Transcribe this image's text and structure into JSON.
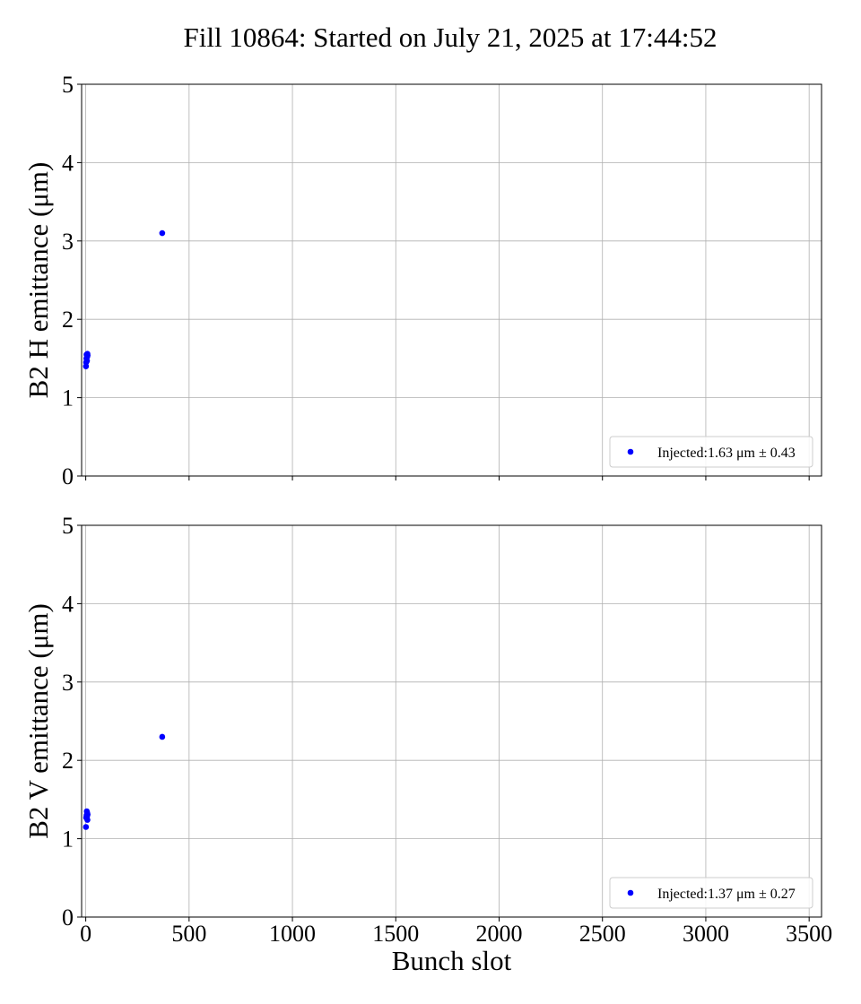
{
  "figure": {
    "title": "Fill 10864: Started on July 21, 2025 at 17:44:52"
  },
  "chart_data": [
    {
      "type": "scatter",
      "ylabel": "B2 H emittance (μm)",
      "xlabel": "",
      "xlim": [
        -20,
        3560
      ],
      "ylim": [
        0,
        5
      ],
      "x_ticks": [
        0,
        500,
        1000,
        1500,
        2000,
        2500,
        3000,
        3500
      ],
      "x_tick_labels_visible": false,
      "y_ticks": [
        0,
        1,
        2,
        3,
        4,
        5
      ],
      "y_tick_labels": [
        "0",
        "1",
        "2",
        "3",
        "4",
        "5"
      ],
      "grid": true,
      "legend_position": "bottom-right",
      "marker_color": "#0000ff",
      "series": [
        {
          "name": "Injected:1.63 μm ± 0.43",
          "points": [
            {
              "x": 1,
              "y": 1.4
            },
            {
              "x": 2,
              "y": 1.45
            },
            {
              "x": 3,
              "y": 1.5
            },
            {
              "x": 4,
              "y": 1.55
            },
            {
              "x": 6,
              "y": 1.47
            },
            {
              "x": 7,
              "y": 1.52
            },
            {
              "x": 8,
              "y": 1.56
            },
            {
              "x": 9,
              "y": 1.54
            },
            {
              "x": 370,
              "y": 3.1
            }
          ]
        }
      ]
    },
    {
      "type": "scatter",
      "ylabel": "B2 V emittance (μm)",
      "xlabel": "Bunch slot",
      "xlim": [
        -20,
        3560
      ],
      "ylim": [
        0,
        5
      ],
      "x_ticks": [
        0,
        500,
        1000,
        1500,
        2000,
        2500,
        3000,
        3500
      ],
      "x_tick_labels": [
        "0",
        "500",
        "1000",
        "1500",
        "2000",
        "2500",
        "3000",
        "3500"
      ],
      "y_ticks": [
        0,
        1,
        2,
        3,
        4,
        5
      ],
      "y_tick_labels": [
        "0",
        "1",
        "2",
        "3",
        "4",
        "5"
      ],
      "grid": true,
      "legend_position": "bottom-right",
      "marker_color": "#0000ff",
      "series": [
        {
          "name": "Injected:1.37 μm ± 0.27",
          "points": [
            {
              "x": 1,
              "y": 1.15
            },
            {
              "x": 2,
              "y": 1.27
            },
            {
              "x": 4,
              "y": 1.3
            },
            {
              "x": 5,
              "y": 1.35
            },
            {
              "x": 6,
              "y": 1.28
            },
            {
              "x": 7,
              "y": 1.33
            },
            {
              "x": 8,
              "y": 1.24
            },
            {
              "x": 9,
              "y": 1.31
            },
            {
              "x": 370,
              "y": 2.3
            }
          ]
        }
      ]
    }
  ]
}
